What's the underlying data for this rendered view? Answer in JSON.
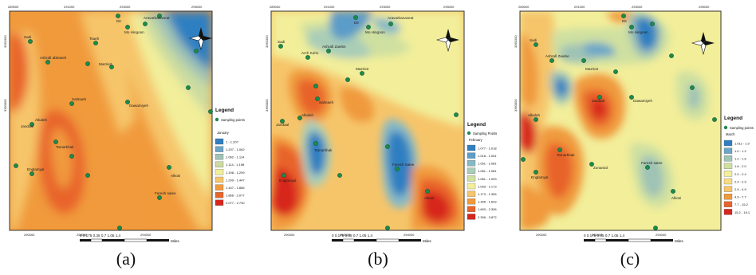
{
  "captions": [
    "(a)",
    "(b)",
    "(c)"
  ],
  "panels": [
    {
      "id": "a",
      "legend_title": "Legend",
      "sampling_label": "Sampling points",
      "month": "January",
      "classes": [
        "1 - 1.207",
        "1.207 - 1.062",
        "1.062 - 1.114",
        "1.114 - 1.198",
        "1.198 - 1.299",
        "1.299 - 1.447",
        "1.447 - 1.866",
        "1.866 - 2.077",
        "2.077 - 2.730"
      ],
      "class_colors": [
        "#2f7fc1",
        "#6aa6c8",
        "#9fc3b5",
        "#cbdba0",
        "#f2ee9a",
        "#f6c56a",
        "#f09a3c",
        "#e8642a",
        "#d7261e"
      ],
      "x_ticks": [
        "289000",
        "290000",
        "291000",
        "292000",
        "293000",
        "294000",
        "295000"
      ],
      "y_ticks": [
        "3360000",
        "3361000"
      ],
      "places": [
        "Dit",
        "Mo Hingoon",
        "Aravarbanaveat",
        "Sadi",
        "Ashrafi abbaseh",
        "Tsaeh",
        "Mazrie2",
        "Dawamiyeh",
        "Salmaeh",
        "Alkaleh",
        "Jandaal",
        "Tamarkhak",
        "Englamyal",
        "Faresh salee",
        "Alkosi"
      ],
      "scale_text": "0 0.175 0.35  0.7  1.05  1.4",
      "scale_unit": "Miles"
    },
    {
      "id": "b",
      "legend_title": "Legend",
      "sampling_label": "Sampling Points",
      "month": "February",
      "classes": [
        "1.077 - 1.018",
        "1.018 - 1.051",
        "1.051 - 1.081",
        "1.081 - 1.081",
        "1.081 - 1.093",
        "1.093 - 1.173",
        "1.173 - 1.306",
        "1.306 - 1.693",
        "1.693 - 2.306",
        "2.306 - 3.872"
      ],
      "class_colors": [
        "#2f7fc1",
        "#5b9cc8",
        "#86b9c6",
        "#a9cdb7",
        "#cfe0a0",
        "#f2ee9a",
        "#f6c56a",
        "#f09a3c",
        "#e8642a",
        "#d7261e"
      ],
      "x_ticks": [
        "289000",
        "290000",
        "291000",
        "292000",
        "293000",
        "294000",
        "295000"
      ],
      "y_ticks": [
        "3360000",
        "3361000"
      ],
      "places": [
        "Dit",
        "Mo Hingoon",
        "Aravarbanaveat",
        "Sadi",
        "Arch Kuhn",
        "Ashrafi Zaiebe",
        "Mazrie2",
        "Salmaeh",
        "Alkaleh",
        "Jandaal",
        "Tamarkhak",
        "Englamyal",
        "Faresh Salee",
        "Alkosi"
      ],
      "scale_text": "0 0.175 0.35  0.7  1.05  1.4",
      "scale_unit": "Miles"
    },
    {
      "id": "c",
      "legend_title": "Legend",
      "sampling_label": "Sampling points",
      "month": "March",
      "classes": [
        "1.011 - 1.0",
        "1.0 - 1.2",
        "1.2 - 1.6",
        "1.6 - 2.0",
        "2.0 - 2.4",
        "2.4 - 2.9",
        "2.9 - 4.9",
        "4.9 - 7.7",
        "7.7 - 15.2",
        "15.2 - 19.1"
      ],
      "class_colors": [
        "#2f7fc1",
        "#6aa6c8",
        "#9fc3b5",
        "#cfe0a0",
        "#f2ee9a",
        "#f8dc82",
        "#f6c56a",
        "#f09a3c",
        "#e8642a",
        "#d7261e"
      ],
      "x_ticks": [
        "289000",
        "290000",
        "291000",
        "292000",
        "293000",
        "294000",
        "295000"
      ],
      "y_ticks": [
        "3360000",
        "3361000"
      ],
      "places": [
        "Dit",
        "Mo Hingoon",
        "Sadi",
        "Ashrafi Zaiebe",
        "Mazrie2",
        "Dawamiyeh",
        "Alkaleh",
        "Jandaal",
        "Tamarkhak",
        "Englamyal",
        "Faresh salee",
        "Alkosi",
        "Zonamal"
      ],
      "scale_text": "0 0.175 0.35  0.7  1.05  1.4",
      "scale_unit": "Miles"
    }
  ]
}
